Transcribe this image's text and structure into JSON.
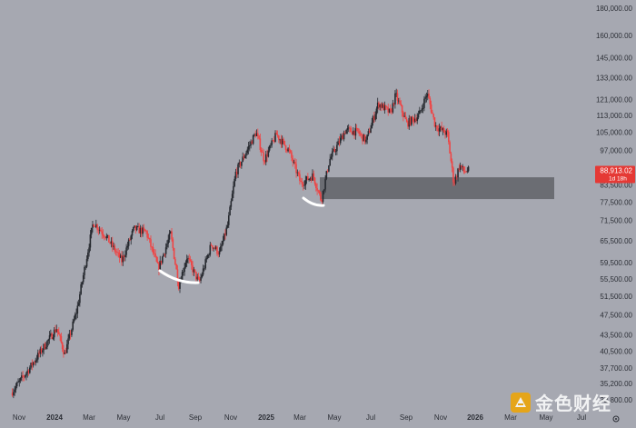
{
  "chart_data": {
    "type": "candlestick",
    "price_axis": {
      "scale": "log",
      "ticks": [
        "180,000.00",
        "160,000.00",
        "145,000.00",
        "133,000.00",
        "121,000.00",
        "113,000.00",
        "105,000.00",
        "97,000.00",
        "89,500.00",
        "83,500.00",
        "77,500.00",
        "71,500.00",
        "65,500.00",
        "59,500.00",
        "55,500.00",
        "51,500.00",
        "47,500.00",
        "43,500.00",
        "40,500.00",
        "37,700.00",
        "35,200.00",
        "32,800.00"
      ]
    },
    "time_axis": {
      "labels": [
        "Nov",
        "2024",
        "Mar",
        "May",
        "Jul",
        "Sep",
        "Nov",
        "2025",
        "Mar",
        "May",
        "Jul",
        "Sep",
        "Nov",
        "2026",
        "Mar",
        "May",
        "Jul"
      ]
    },
    "current_price": {
      "value": "88,913.02",
      "countdown": "1d 18h",
      "color": "#e53935"
    },
    "support_zone": {
      "low": 78500,
      "high": 86300
    },
    "anchors": [
      {
        "date": "2023-10-22",
        "price": 33800
      },
      {
        "date": "2023-11-20",
        "price": 37300
      },
      {
        "date": "2024-01-08",
        "price": 44800
      },
      {
        "date": "2024-01-22",
        "price": 40000
      },
      {
        "date": "2024-02-12",
        "price": 48500
      },
      {
        "date": "2024-03-11",
        "price": 71000
      },
      {
        "date": "2024-04-01",
        "price": 67000
      },
      {
        "date": "2024-04-29",
        "price": 60000
      },
      {
        "date": "2024-05-20",
        "price": 69000
      },
      {
        "date": "2024-06-10",
        "price": 68000
      },
      {
        "date": "2024-07-01",
        "price": 58000
      },
      {
        "date": "2024-07-22",
        "price": 67500
      },
      {
        "date": "2024-08-05",
        "price": 54000
      },
      {
        "date": "2024-08-19",
        "price": 61000
      },
      {
        "date": "2024-09-09",
        "price": 54500
      },
      {
        "date": "2024-09-30",
        "price": 64500
      },
      {
        "date": "2024-10-14",
        "price": 62000
      },
      {
        "date": "2024-10-28",
        "price": 70000
      },
      {
        "date": "2024-11-11",
        "price": 88000
      },
      {
        "date": "2024-12-16",
        "price": 105000
      },
      {
        "date": "2024-12-30",
        "price": 93000
      },
      {
        "date": "2025-01-20",
        "price": 104000
      },
      {
        "date": "2025-02-10",
        "price": 97000
      },
      {
        "date": "2025-03-03",
        "price": 84000
      },
      {
        "date": "2025-03-24",
        "price": 87000
      },
      {
        "date": "2025-04-07",
        "price": 78000
      },
      {
        "date": "2025-04-21",
        "price": 93000
      },
      {
        "date": "2025-05-19",
        "price": 106000
      },
      {
        "date": "2025-06-09",
        "price": 105000
      },
      {
        "date": "2025-06-23",
        "price": 101000
      },
      {
        "date": "2025-07-14",
        "price": 119000
      },
      {
        "date": "2025-08-04",
        "price": 114000
      },
      {
        "date": "2025-08-13",
        "price": 123500
      },
      {
        "date": "2025-09-01",
        "price": 109000
      },
      {
        "date": "2025-09-22",
        "price": 113000
      },
      {
        "date": "2025-10-06",
        "price": 124500
      },
      {
        "date": "2025-10-20",
        "price": 108000
      },
      {
        "date": "2025-11-10",
        "price": 104000
      },
      {
        "date": "2025-11-21",
        "price": 84000
      },
      {
        "date": "2025-12-01",
        "price": 91000
      },
      {
        "date": "2025-12-08",
        "price": 88500
      },
      {
        "date": "2025-12-15",
        "price": 88900
      }
    ],
    "up_color": "#26292f",
    "down_color": "#ef4444",
    "zone_color": "#606368",
    "arc_color": "#ffffff"
  },
  "watermark": {
    "text": "金色财经"
  }
}
